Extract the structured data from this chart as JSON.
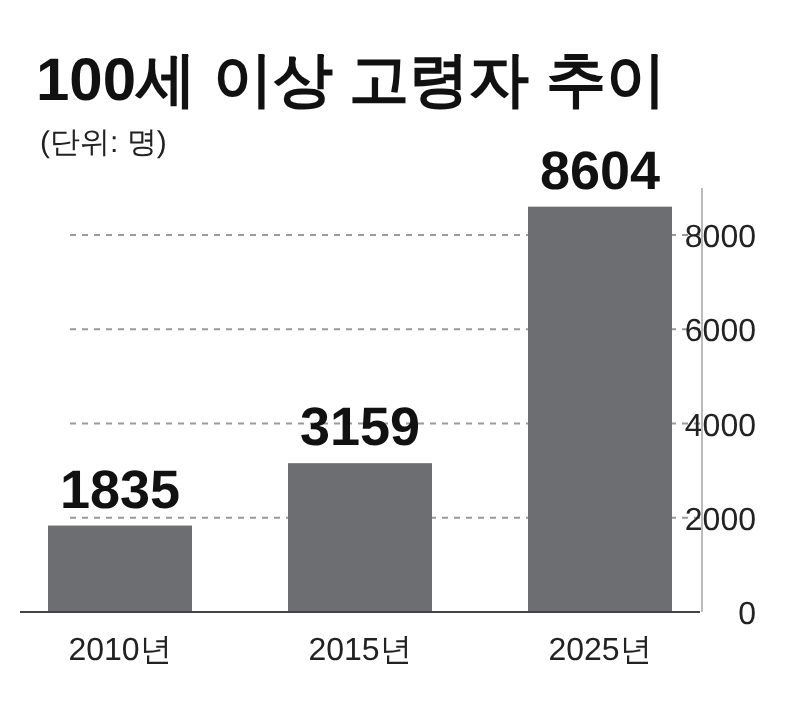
{
  "chart_data": {
    "type": "bar",
    "title": "100세 이상 고령자 추이",
    "subtitle": "(단위: 명)",
    "categories": [
      "2010년",
      "2015년",
      "2025년"
    ],
    "values": [
      1835,
      3159,
      8604
    ],
    "color": "#6d6e71",
    "ylim": [
      0,
      9000
    ],
    "yticks": [
      0,
      2000,
      4000,
      6000,
      8000
    ],
    "grid": "y",
    "data_labels": true
  }
}
